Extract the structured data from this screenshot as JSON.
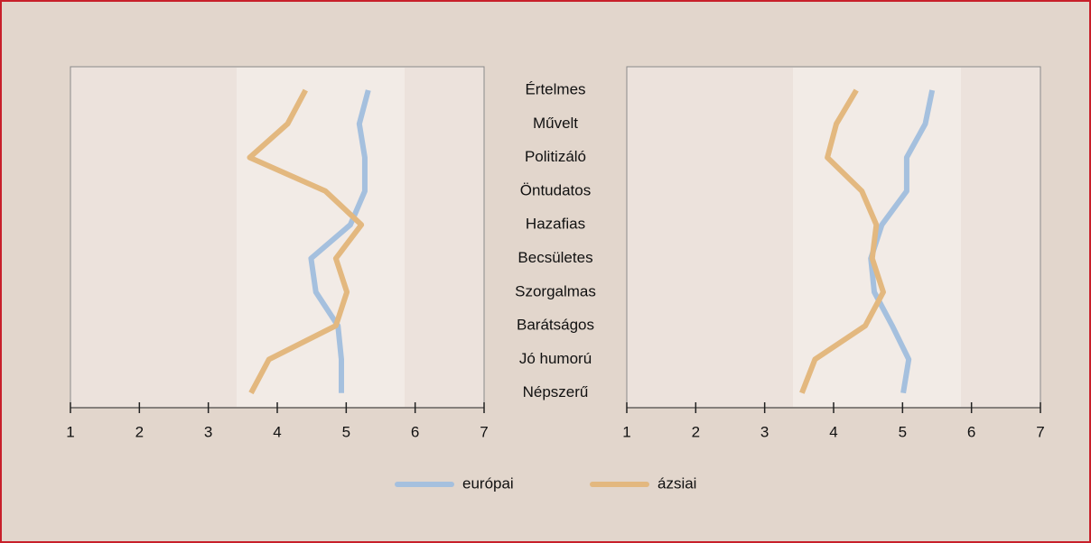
{
  "chart_data": [
    {
      "type": "line",
      "categories": [
        "Értelmes",
        "Művelt",
        "Politizáló",
        "Öntudatos",
        "Hazafias",
        "Becsületes",
        "Szorgalmas",
        "Barátságos",
        "Jó humorú",
        "Népszerű"
      ],
      "series": [
        {
          "name": "európai",
          "color": "#a5c0de",
          "values": [
            5.32,
            5.19,
            5.27,
            5.27,
            5.06,
            4.49,
            4.56,
            4.88,
            4.93,
            4.93
          ]
        },
        {
          "name": "ázsiai",
          "color": "#e3b87f",
          "values": [
            4.41,
            4.15,
            3.6,
            4.7,
            5.22,
            4.85,
            5.01,
            4.85,
            3.88,
            3.62
          ]
        }
      ],
      "xlim": [
        1,
        7
      ],
      "xticks": [
        1,
        2,
        3,
        4,
        5,
        6,
        7
      ]
    },
    {
      "type": "line",
      "series": [
        {
          "color": "#a5c0de",
          "values": [
            5.43,
            5.33,
            5.06,
            5.06,
            4.7,
            4.54,
            4.59,
            4.85,
            5.09,
            5.01
          ]
        },
        {
          "color": "#e3b87f",
          "values": [
            4.33,
            4.04,
            3.91,
            4.41,
            4.62,
            4.56,
            4.72,
            4.46,
            3.73,
            3.54
          ]
        }
      ],
      "xlim": [
        1,
        7
      ],
      "xticks": [
        1,
        2,
        3,
        4,
        5,
        6,
        7
      ]
    }
  ]
}
